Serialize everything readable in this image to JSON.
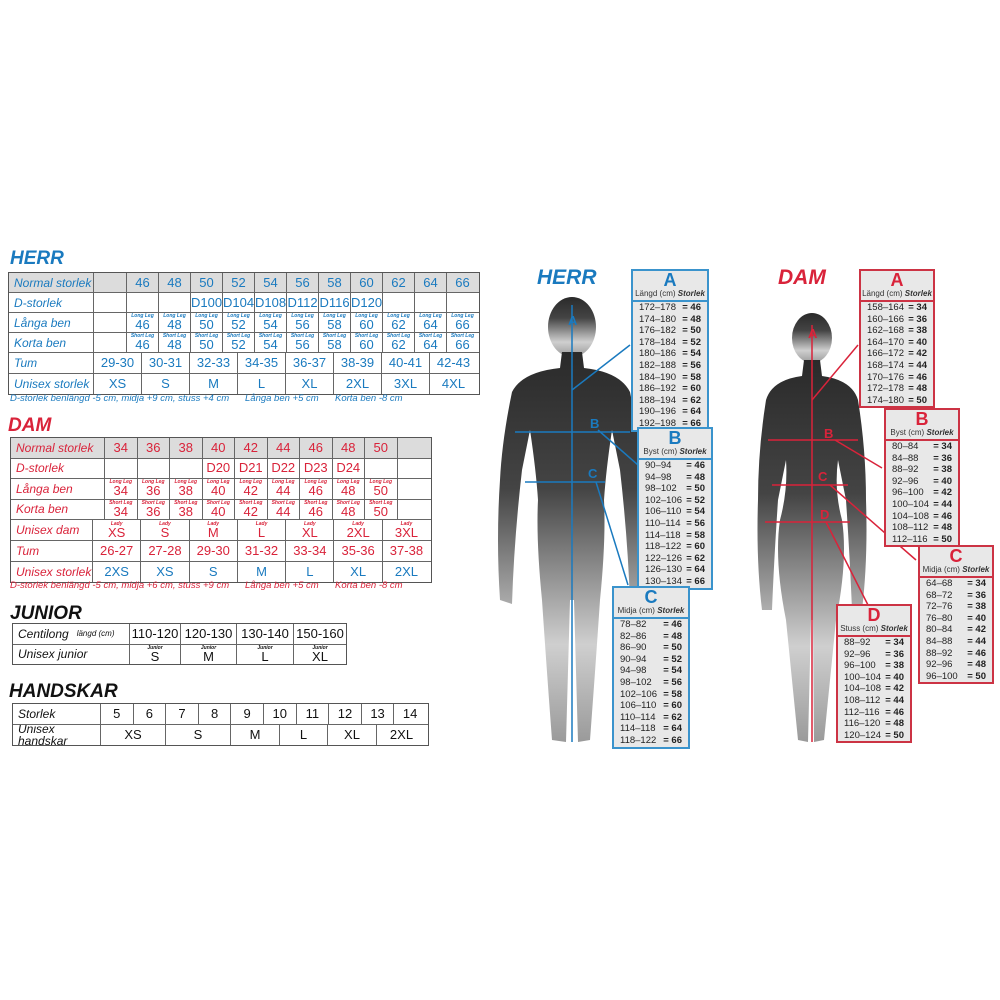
{
  "colors": {
    "herr": "#1a7abf",
    "dam": "#d9233a"
  },
  "herr": {
    "title": "HERR",
    "rows_top": [
      {
        "label": "Normal storlek",
        "cells": [
          "",
          "46",
          "48",
          "50",
          "52",
          "54",
          "56",
          "58",
          "60",
          "62",
          "64",
          "66"
        ]
      },
      {
        "label": "D-storlek",
        "cells": [
          "",
          "",
          "",
          "D100",
          "D104",
          "D108",
          "D112",
          "D116",
          "D120",
          "",
          "",
          ""
        ]
      },
      {
        "label": "Långa ben",
        "sup": "Long Leg",
        "cells": [
          "",
          "46",
          "48",
          "50",
          "52",
          "54",
          "56",
          "58",
          "60",
          "62",
          "64",
          "66"
        ]
      },
      {
        "label": "Korta ben",
        "sup": "Short Leg",
        "cells": [
          "",
          "46",
          "48",
          "50",
          "52",
          "54",
          "56",
          "58",
          "60",
          "62",
          "64",
          "66"
        ]
      }
    ],
    "rows_bottom": [
      {
        "label": "Tum",
        "cells": [
          "29-30",
          "30-31",
          "32-33",
          "34-35",
          "36-37",
          "38-39",
          "40-41",
          "42-43"
        ]
      },
      {
        "label": "Unisex storlek",
        "cells": [
          "XS",
          "S",
          "M",
          "L",
          "XL",
          "2XL",
          "3XL",
          "4XL"
        ]
      }
    ],
    "notes": [
      "D-storlek benlängd -5 cm, midja +9 cm, stuss +4 cm",
      "Långa ben +5 cm",
      "Korta ben -8 cm"
    ]
  },
  "dam": {
    "title": "DAM",
    "rows_top": [
      {
        "label": "Normal storlek",
        "cells": [
          "34",
          "36",
          "38",
          "40",
          "42",
          "44",
          "46",
          "48",
          "50",
          ""
        ]
      },
      {
        "label": "D-storlek",
        "cells": [
          "",
          "",
          "",
          "D20",
          "D21",
          "D22",
          "D23",
          "D24",
          "",
          ""
        ]
      },
      {
        "label": "Långa ben",
        "sup": "Long Leg",
        "cells": [
          "34",
          "36",
          "38",
          "40",
          "42",
          "44",
          "46",
          "48",
          "50",
          ""
        ]
      },
      {
        "label": "Korta ben",
        "sup": "Short Leg",
        "cells": [
          "34",
          "36",
          "38",
          "40",
          "42",
          "44",
          "46",
          "48",
          "50",
          ""
        ]
      }
    ],
    "rows_bottom": [
      {
        "label": "Unisex dam",
        "sup": "Lady",
        "cells": [
          "XS",
          "S",
          "M",
          "L",
          "XL",
          "2XL",
          "3XL"
        ]
      },
      {
        "label": "Tum",
        "cells": [
          "26-27",
          "27-28",
          "29-30",
          "31-32",
          "33-34",
          "35-36",
          "37-38"
        ]
      },
      {
        "label": "Unisex storlek",
        "cells": [
          "2XS",
          "XS",
          "S",
          "M",
          "L",
          "XL",
          "2XL"
        ]
      }
    ],
    "notes": [
      "D-storlek benlängd -5 cm, midja +6 cm, stuss +9 cm",
      "Långa ben +5 cm",
      "Korta ben -8 cm"
    ]
  },
  "junior": {
    "title": "JUNIOR",
    "rows": [
      {
        "label": "Centilong",
        "label_small": "längd (cm)",
        "cells": [
          "110-120",
          "120-130",
          "130-140",
          "150-160"
        ]
      },
      {
        "label": "Unisex junior",
        "sup": "Junior",
        "cells": [
          "S",
          "M",
          "L",
          "XL"
        ]
      }
    ]
  },
  "handskar": {
    "title": "HANDSKAR",
    "rows": [
      {
        "label": "Storlek",
        "cells": [
          "5",
          "6",
          "7",
          "8",
          "9",
          "10",
          "11",
          "12",
          "13",
          "14"
        ]
      },
      {
        "label": "Unisex handskar",
        "cells": [
          "XS",
          "S",
          "M",
          "L",
          "XL",
          "2XL"
        ]
      }
    ]
  },
  "figures": {
    "herr": {
      "title": "HERR",
      "markers": [
        "A",
        "B",
        "C"
      ],
      "boxes": [
        {
          "letter": "A",
          "measure": "Längd (cm)",
          "size_label": "Storlek",
          "rows": [
            [
              "172–178",
              "= 46"
            ],
            [
              "174–180",
              "= 48"
            ],
            [
              "176–182",
              "= 50"
            ],
            [
              "178–184",
              "= 52"
            ],
            [
              "180–186",
              "= 54"
            ],
            [
              "182–188",
              "= 56"
            ],
            [
              "184–190",
              "= 58"
            ],
            [
              "186–192",
              "= 60"
            ],
            [
              "188–194",
              "= 62"
            ],
            [
              "190–196",
              "= 64"
            ],
            [
              "192–198",
              "= 66"
            ]
          ]
        },
        {
          "letter": "B",
          "measure": "Byst (cm)",
          "size_label": "Storlek",
          "rows": [
            [
              "90–94",
              "= 46"
            ],
            [
              "94–98",
              "= 48"
            ],
            [
              "98–102",
              "= 50"
            ],
            [
              "102–106",
              "= 52"
            ],
            [
              "106–110",
              "= 54"
            ],
            [
              "110–114",
              "= 56"
            ],
            [
              "114–118",
              "= 58"
            ],
            [
              "118–122",
              "= 60"
            ],
            [
              "122–126",
              "= 62"
            ],
            [
              "126–130",
              "= 64"
            ],
            [
              "130–134",
              "= 66"
            ]
          ]
        },
        {
          "letter": "C",
          "measure": "Midja (cm)",
          "size_label": "Storlek",
          "rows": [
            [
              "78–82",
              "= 46"
            ],
            [
              "82–86",
              "= 48"
            ],
            [
              "86–90",
              "= 50"
            ],
            [
              "90–94",
              "= 52"
            ],
            [
              "94–98",
              "= 54"
            ],
            [
              "98–102",
              "= 56"
            ],
            [
              "102–106",
              "= 58"
            ],
            [
              "106–110",
              "= 60"
            ],
            [
              "110–114",
              "= 62"
            ],
            [
              "114–118",
              "= 64"
            ],
            [
              "118–122",
              "= 66"
            ]
          ]
        }
      ]
    },
    "dam": {
      "title": "DAM",
      "markers": [
        "A",
        "B",
        "C",
        "D"
      ],
      "boxes": [
        {
          "letter": "A",
          "measure": "Längd (cm)",
          "size_label": "Storlek",
          "rows": [
            [
              "158–164",
              "= 34"
            ],
            [
              "160–166",
              "= 36"
            ],
            [
              "162–168",
              "= 38"
            ],
            [
              "164–170",
              "= 40"
            ],
            [
              "166–172",
              "= 42"
            ],
            [
              "168–174",
              "= 44"
            ],
            [
              "170–176",
              "= 46"
            ],
            [
              "172–178",
              "= 48"
            ],
            [
              "174–180",
              "= 50"
            ]
          ]
        },
        {
          "letter": "B",
          "measure": "Byst (cm)",
          "size_label": "Storlek",
          "rows": [
            [
              "80–84",
              "= 34"
            ],
            [
              "84–88",
              "= 36"
            ],
            [
              "88–92",
              "= 38"
            ],
            [
              "92–96",
              "= 40"
            ],
            [
              "96–100",
              "= 42"
            ],
            [
              "100–104",
              "= 44"
            ],
            [
              "104–108",
              "= 46"
            ],
            [
              "108–112",
              "= 48"
            ],
            [
              "112–116",
              "= 50"
            ]
          ]
        },
        {
          "letter": "C",
          "measure": "Midja (cm)",
          "size_label": "Storlek",
          "rows": [
            [
              "64–68",
              "= 34"
            ],
            [
              "68–72",
              "= 36"
            ],
            [
              "72–76",
              "= 38"
            ],
            [
              "76–80",
              "= 40"
            ],
            [
              "80–84",
              "= 42"
            ],
            [
              "84–88",
              "= 44"
            ],
            [
              "88–92",
              "= 46"
            ],
            [
              "92–96",
              "= 48"
            ],
            [
              "96–100",
              "= 50"
            ]
          ]
        },
        {
          "letter": "D",
          "measure": "Stuss (cm)",
          "size_label": "Storlek",
          "rows": [
            [
              "88–92",
              "= 34"
            ],
            [
              "92–96",
              "= 36"
            ],
            [
              "96–100",
              "= 38"
            ],
            [
              "100–104",
              "= 40"
            ],
            [
              "104–108",
              "= 42"
            ],
            [
              "108–112",
              "= 44"
            ],
            [
              "112–116",
              "= 46"
            ],
            [
              "116–120",
              "= 48"
            ],
            [
              "120–124",
              "= 50"
            ]
          ]
        }
      ]
    }
  }
}
